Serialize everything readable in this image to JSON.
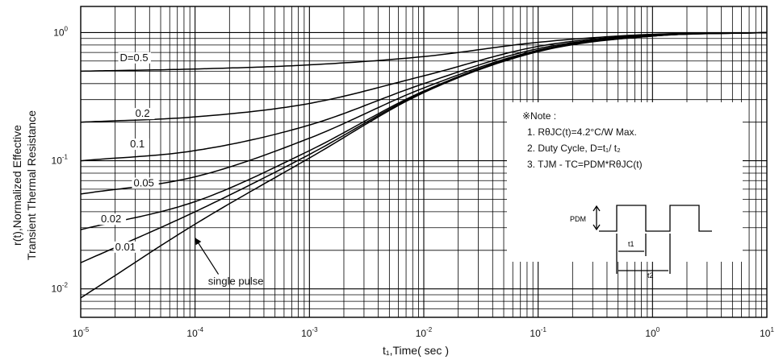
{
  "chart_data": {
    "type": "line",
    "xlabel": "t₁,Time( sec )",
    "ylabel_lines": [
      "r(t),Normalized Effective",
      "Transient Thermal Resistance"
    ],
    "x_scale": "log",
    "y_scale": "log",
    "xlim": [
      1e-05,
      10
    ],
    "ylim": [
      0.006,
      1.6
    ],
    "grid": true,
    "x_ticks": [
      {
        "value": 1e-05,
        "base": "10",
        "exp": "-5"
      },
      {
        "value": 0.0001,
        "base": "10",
        "exp": "-4"
      },
      {
        "value": 0.001,
        "base": "10",
        "exp": "-3"
      },
      {
        "value": 0.01,
        "base": "10",
        "exp": "-2"
      },
      {
        "value": 0.1,
        "base": "10",
        "exp": "-1"
      },
      {
        "value": 1,
        "base": "10",
        "exp": "0"
      },
      {
        "value": 10,
        "base": "10",
        "exp": "1"
      }
    ],
    "y_ticks": [
      {
        "value": 0.01,
        "base": "10",
        "exp": "-2"
      },
      {
        "value": 0.1,
        "base": "10",
        "exp": "-1"
      },
      {
        "value": 1,
        "base": "10",
        "exp": "0"
      }
    ],
    "series": [
      {
        "name": "D=0.5",
        "label_x": 2.2e-05,
        "label_y": 0.6,
        "points": [
          [
            1e-05,
            0.5
          ],
          [
            0.0001,
            0.52
          ],
          [
            0.001,
            0.56
          ],
          [
            0.01,
            0.65
          ],
          [
            0.1,
            0.84
          ],
          [
            1,
            0.97
          ],
          [
            10,
            1.0
          ]
        ]
      },
      {
        "name": "0.2",
        "label_x": 3e-05,
        "label_y": 0.22,
        "points": [
          [
            1e-05,
            0.2
          ],
          [
            0.0001,
            0.22
          ],
          [
            0.001,
            0.28
          ],
          [
            0.01,
            0.46
          ],
          [
            0.1,
            0.78
          ],
          [
            1,
            0.96
          ],
          [
            10,
            1.0
          ]
        ]
      },
      {
        "name": "0.1",
        "label_x": 2.7e-05,
        "label_y": 0.127,
        "points": [
          [
            1e-05,
            0.1
          ],
          [
            0.0001,
            0.12
          ],
          [
            0.001,
            0.19
          ],
          [
            0.01,
            0.4
          ],
          [
            0.1,
            0.75
          ],
          [
            1,
            0.95
          ],
          [
            10,
            1.0
          ]
        ]
      },
      {
        "name": "0.05",
        "label_x": 2.9e-05,
        "label_y": 0.063,
        "points": [
          [
            1e-05,
            0.055
          ],
          [
            0.0001,
            0.075
          ],
          [
            0.001,
            0.15
          ],
          [
            0.01,
            0.37
          ],
          [
            0.1,
            0.73
          ],
          [
            1,
            0.95
          ],
          [
            10,
            1.0
          ]
        ]
      },
      {
        "name": "0.02",
        "label_x": 1.5e-05,
        "label_y": 0.033,
        "points": [
          [
            1e-05,
            0.029
          ],
          [
            0.0001,
            0.048
          ],
          [
            0.001,
            0.12
          ],
          [
            0.01,
            0.35
          ],
          [
            0.1,
            0.72
          ],
          [
            1,
            0.94
          ],
          [
            10,
            1.0
          ]
        ]
      },
      {
        "name": "0.01",
        "label_x": 2e-05,
        "label_y": 0.02,
        "points": [
          [
            1e-05,
            0.016
          ],
          [
            0.0001,
            0.04
          ],
          [
            0.001,
            0.112
          ],
          [
            0.01,
            0.345
          ],
          [
            0.1,
            0.72
          ],
          [
            1,
            0.94
          ],
          [
            10,
            1.0
          ]
        ]
      },
      {
        "name": "single pulse",
        "label_x": 0.00013,
        "label_y": 0.0108,
        "points": [
          [
            1e-05,
            0.0085
          ],
          [
            0.0001,
            0.032
          ],
          [
            0.001,
            0.105
          ],
          [
            0.01,
            0.34
          ],
          [
            0.1,
            0.71
          ],
          [
            1,
            0.94
          ],
          [
            10,
            1.0
          ]
        ]
      }
    ],
    "annotation_arrow": {
      "from": [
        0.00016,
        0.013
      ],
      "to": [
        0.0001,
        0.025
      ]
    },
    "note": {
      "title": "※Note :",
      "line1": "1. RθJC(t)=4.2°C/W Max.",
      "line2": "2. Duty Cycle, D=t₁/ t₂",
      "line3": "3. TJM - TC=PDM*RθJC(t)"
    },
    "pulse_inset": {
      "pdm_label": "PDM",
      "t1_label": "t1",
      "t2_label": "t2"
    }
  }
}
